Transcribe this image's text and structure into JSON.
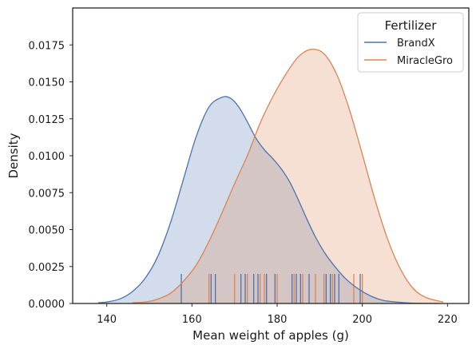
{
  "chart_data": {
    "type": "area",
    "xlabel": "Mean weight of apples (g)",
    "ylabel": "Density",
    "xlim": [
      132,
      225
    ],
    "ylim": [
      0,
      0.02
    ],
    "x_ticks": [
      140,
      160,
      180,
      200,
      220
    ],
    "y_ticks": [
      0.0,
      0.0025,
      0.005,
      0.0075,
      0.01,
      0.0125,
      0.015,
      0.0175
    ],
    "y_tick_labels": [
      "0.0000",
      "0.0025",
      "0.0050",
      "0.0075",
      "0.0100",
      "0.0125",
      "0.0150",
      "0.0175"
    ],
    "grid": false,
    "legend": {
      "title": "Fertilizer",
      "placement": "top-right",
      "entries": [
        "BrandX",
        "MiracleGro"
      ]
    },
    "series": [
      {
        "name": "BrandX",
        "color": "#4c72b0",
        "x": [
          138,
          140,
          143,
          146,
          149,
          152,
          155,
          158,
          161,
          164,
          167,
          169,
          171,
          173,
          175,
          177,
          179,
          181,
          183,
          185,
          187,
          189,
          191,
          193,
          196,
          199,
          202,
          205,
          208,
          211,
          214,
          218
        ],
        "y": [
          5e-05,
          0.0001,
          0.0003,
          0.0008,
          0.0017,
          0.0032,
          0.0055,
          0.0084,
          0.0113,
          0.0133,
          0.01395,
          0.0139,
          0.0133,
          0.0123,
          0.0112,
          0.0104,
          0.0098,
          0.0091,
          0.0082,
          0.007,
          0.0057,
          0.0045,
          0.0035,
          0.0027,
          0.0017,
          0.001,
          0.0005,
          0.0002,
          0.0001,
          3e-05,
          1e-05,
          0.0
        ],
        "rug": [
          157.5,
          164.5,
          165.5,
          171.5,
          172.5,
          174.5,
          175.5,
          177.5,
          179.5,
          183.5,
          184.5,
          185.5,
          187.5,
          191.5,
          192.5,
          193.5,
          194.5,
          199.5
        ]
      },
      {
        "name": "MiracleGro",
        "color": "#dd8452",
        "x": [
          146,
          149,
          152,
          155,
          158,
          161,
          164,
          167,
          170,
          173,
          176,
          179,
          182,
          185,
          188,
          191,
          194,
          197,
          200,
          203,
          206,
          209,
          212,
          215,
          219
        ],
        "y": [
          5e-05,
          0.0001,
          0.0003,
          0.0007,
          0.0015,
          0.0026,
          0.0042,
          0.0061,
          0.0081,
          0.01,
          0.0122,
          0.014,
          0.0155,
          0.0167,
          0.0172,
          0.0169,
          0.0155,
          0.0131,
          0.0101,
          0.007,
          0.0043,
          0.0023,
          0.001,
          0.0004,
          0.0001
        ],
        "rug": [
          164.0,
          170.0,
          173.0,
          176.0,
          177.0,
          180.0,
          184.0,
          186.0,
          189.0,
          191.0,
          193.0,
          198.0,
          200.0
        ]
      }
    ]
  }
}
